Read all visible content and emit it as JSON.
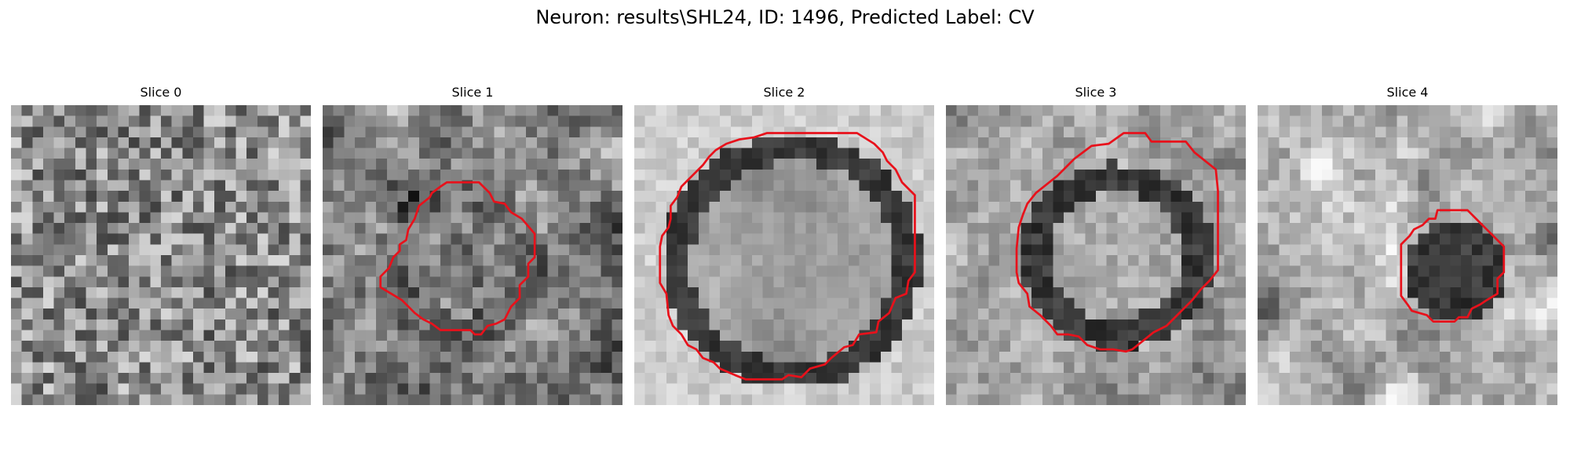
{
  "figure": {
    "title": "Neuron: results\\SHL24, ID: 1496, Predicted Label: CV"
  },
  "panels": [
    {
      "title": "Slice 0",
      "pattern": "noise",
      "has_contour": false
    },
    {
      "title": "Slice 1",
      "pattern": "faint-blob",
      "has_contour": true
    },
    {
      "title": "Slice 2",
      "pattern": "large-ring",
      "has_contour": true
    },
    {
      "title": "Slice 3",
      "pattern": "medium-ring",
      "has_contour": true
    },
    {
      "title": "Slice 4",
      "pattern": "dark-blob",
      "has_contour": true
    }
  ],
  "colors": {
    "contour": "#e8111b",
    "background": "#ffffff"
  },
  "image_grid": {
    "cells": 28,
    "colormap": "gray"
  }
}
